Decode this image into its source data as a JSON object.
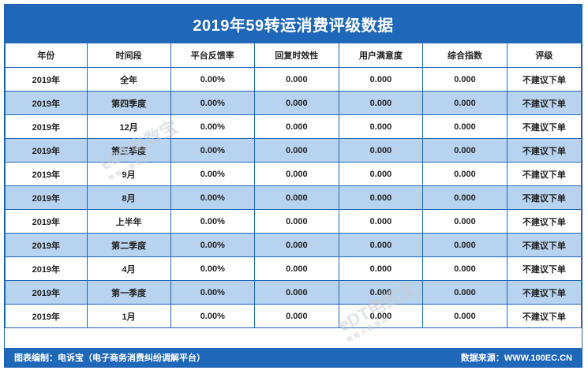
{
  "title": "2019年59转运消费评级数据",
  "columns": [
    "年份",
    "时间段",
    "平台反馈率",
    "回复时效性",
    "用户满意度",
    "综合指数",
    "评级"
  ],
  "rows": [
    [
      "2019年",
      "全年",
      "0.00%",
      "0.000",
      "0.000",
      "0.000",
      "不建议下单"
    ],
    [
      "2019年",
      "第四季度",
      "0.00%",
      "0.000",
      "0.000",
      "0.000",
      "不建议下单"
    ],
    [
      "2019年",
      "12月",
      "0.00%",
      "0.000",
      "0.000",
      "0.000",
      "不建议下单"
    ],
    [
      "2019年",
      "第三季度",
      "0.00%",
      "0.000",
      "0.000",
      "0.000",
      "不建议下单"
    ],
    [
      "2019年",
      "9月",
      "0.00%",
      "0.000",
      "0.000",
      "0.000",
      "不建议下单"
    ],
    [
      "2019年",
      "8月",
      "0.00%",
      "0.000",
      "0.000",
      "0.000",
      "不建议下单"
    ],
    [
      "2019年",
      "上半年",
      "0.00%",
      "0.000",
      "0.000",
      "0.000",
      "不建议下单"
    ],
    [
      "2019年",
      "第二季度",
      "0.00%",
      "0.000",
      "0.000",
      "0.000",
      "不建议下单"
    ],
    [
      "2019年",
      "4月",
      "0.00%",
      "0.000",
      "0.000",
      "0.000",
      "不建议下单"
    ],
    [
      "2019年",
      "第一季度",
      "0.00%",
      "0.000",
      "0.000",
      "0.000",
      "不建议下单"
    ],
    [
      "2019年",
      "1月",
      "0.00%",
      "0.000",
      "0.000",
      "0.000",
      "不建议下单"
    ]
  ],
  "footer": {
    "left": "图表编制：电诉宝（电子商务消费纠纷调解平台）",
    "right": "数据来源：WWW.100EC.CN"
  },
  "watermark": {
    "main": "eDT电数宝",
    "sub": "电商大数据库"
  },
  "colors": {
    "header_blue": "#1f67b8",
    "alt_row": "#b7d3ef"
  }
}
